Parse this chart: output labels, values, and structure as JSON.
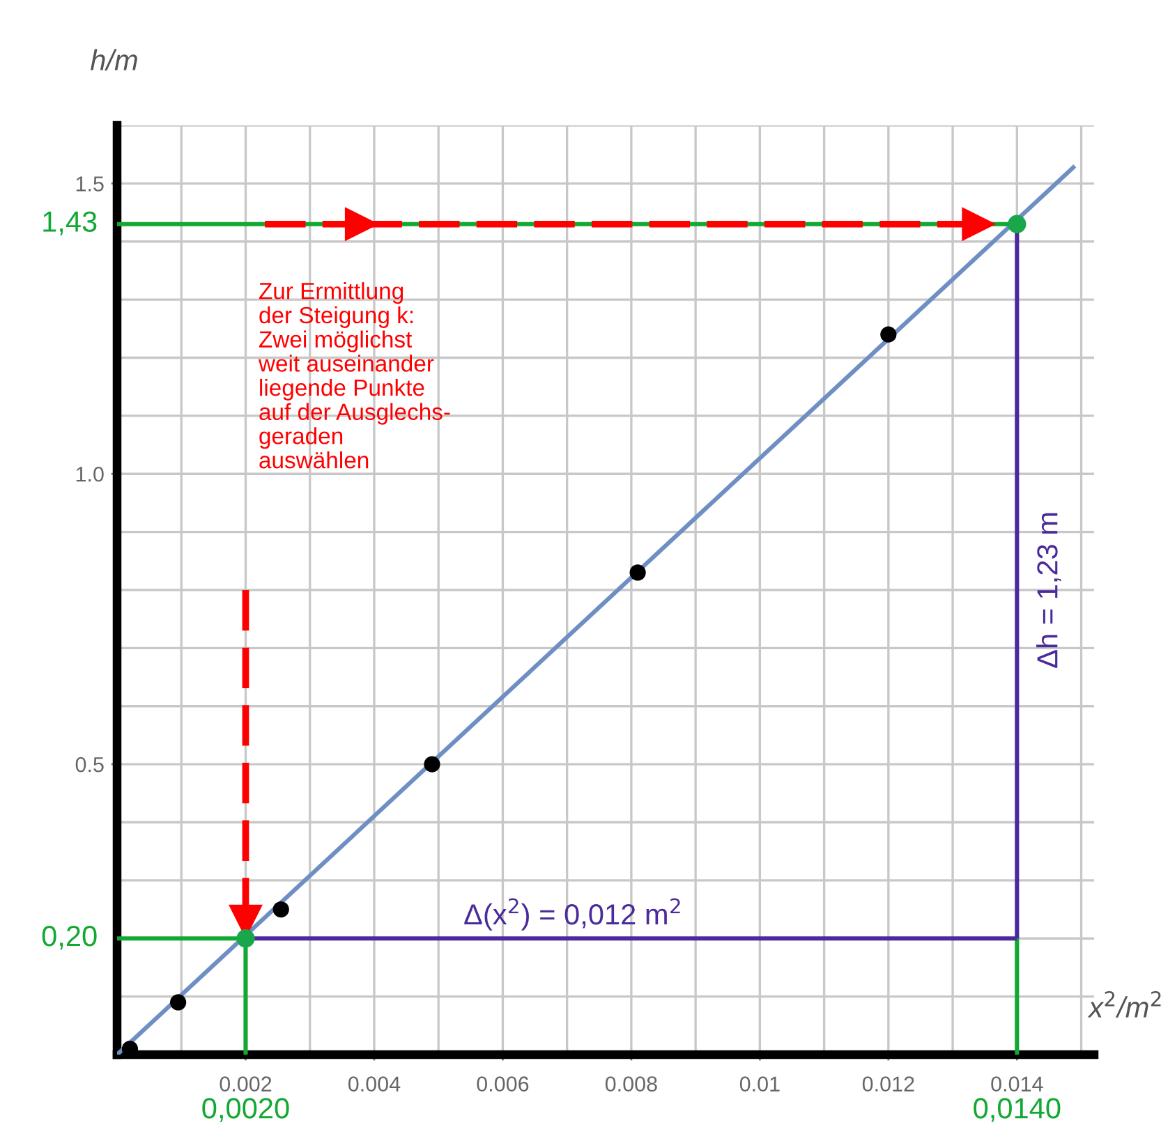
{
  "chart_data": {
    "type": "scatter",
    "xlabel": "x$^{2}$/m$^{2}$",
    "ylabel": "h/m",
    "xlim": [
      0,
      0.0152
    ],
    "ylim": [
      0,
      1.6
    ],
    "xticks": [
      0.002,
      0.004,
      0.006,
      0.008,
      0.01,
      0.012,
      0.014
    ],
    "yticks": [
      {
        "value": 0.5,
        "label": "0.5"
      },
      {
        "value": 1.0,
        "label": "1.0"
      },
      {
        "value": 1.5,
        "label": "1.5"
      }
    ],
    "grid": true,
    "series": [
      {
        "type": "line",
        "color": "#6f8fc4",
        "line_style": "solid",
        "x": [
          0,
          0.0149
        ],
        "values": [
          0,
          1.53
        ]
      },
      {
        "type": "line",
        "color": "#12a833",
        "line_style": "solid",
        "x": [
          0,
          0.014
        ],
        "values": [
          1.43,
          1.43
        ]
      },
      {
        "type": "line",
        "color": "#12a833",
        "line_style": "solid",
        "x": [
          0,
          0.002
        ],
        "values": [
          0.2,
          0.2
        ]
      },
      {
        "type": "line",
        "color": "#12a833",
        "line_style": "solid",
        "x": [
          0.002,
          0.002
        ],
        "values": [
          0,
          0.2
        ]
      },
      {
        "type": "line",
        "color": "#12a833",
        "line_style": "solid",
        "x": [
          0.014,
          0.014
        ],
        "values": [
          0,
          0.2
        ]
      },
      {
        "type": "line",
        "color": "#4a2a9c",
        "line_style": "solid",
        "x": [
          0.002,
          0.014
        ],
        "values": [
          0.2,
          0.2
        ]
      },
      {
        "type": "line",
        "color": "#4a2a9c",
        "line_style": "solid",
        "x": [
          0.014,
          0.014
        ],
        "values": [
          0.2,
          1.43
        ]
      },
      {
        "type": "line",
        "color": "#ff0000",
        "line_style": "dashed",
        "x": [
          0.0023,
          0.0038
        ],
        "values": [
          1.43,
          1.43
        ]
      },
      {
        "type": "line",
        "color": "#ff0000",
        "line_style": "dashed",
        "x": [
          0.0038,
          0.0134
        ],
        "values": [
          1.43,
          1.43
        ]
      },
      {
        "type": "line",
        "color": "#ff0000",
        "line_style": "dashed",
        "x": [
          0.002,
          0.002
        ],
        "values": [
          0.8,
          0.23
        ]
      },
      {
        "type": "scatter",
        "marker": "circle",
        "color": "#000000",
        "x": [
          0.0002,
          0.00095,
          0.00255,
          0.0049,
          0.0081,
          0.012
        ],
        "values": [
          0.01,
          0.09,
          0.25,
          0.5,
          0.83,
          1.24
        ]
      },
      {
        "type": "scatter",
        "marker": "circle",
        "color": "#1aa64a",
        "x": [
          0.002,
          0.014
        ],
        "values": [
          0.2,
          1.43
        ]
      }
    ],
    "annotations": [
      {
        "text": "1,43",
        "x": 0,
        "y": 1.43
      },
      {
        "text": "0,20",
        "x": 0,
        "y": 0.2
      },
      {
        "text": "0,0020",
        "x": 0.002,
        "y": 0
      },
      {
        "text": "0,0140",
        "x": 0.014,
        "y": 0
      },
      {
        "text": "Δ(x$^{2}$) = 0,012 m$^{2}$",
        "x": 0.008,
        "y": 0.2
      },
      {
        "text": "Δh = 1,23 m",
        "x": 0.014,
        "y": 0.8
      },
      "Zur Ermittlung\nder Steigung k:\nZwei möglichst\nweit auseinander\nliegende Punkte\nauf der Ausglechs-\ngeraden\nauswählen"
    ]
  }
}
